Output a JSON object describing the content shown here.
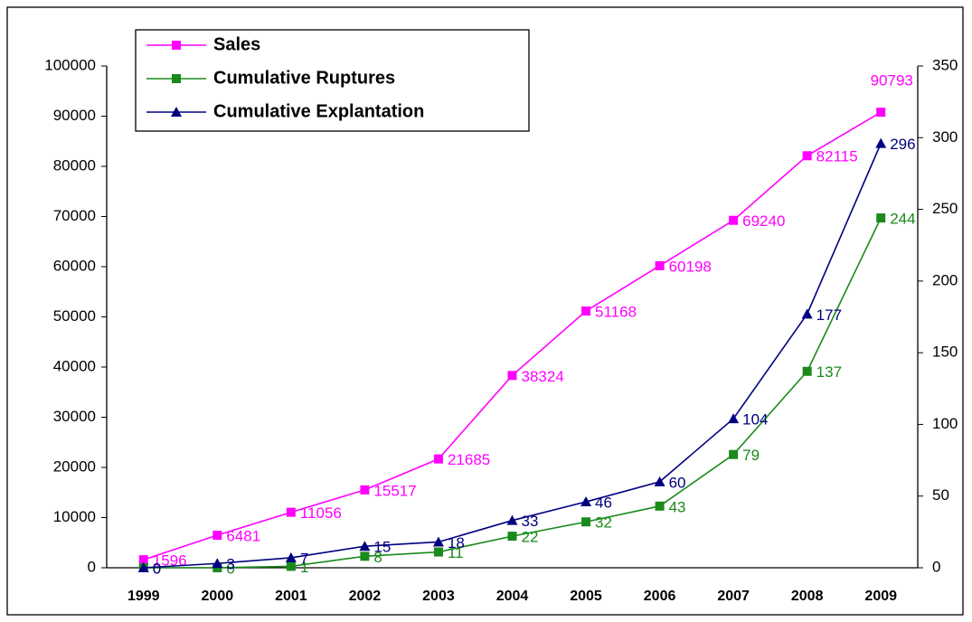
{
  "chart_data": {
    "type": "line",
    "categories": [
      "1999",
      "2000",
      "2001",
      "2002",
      "2003",
      "2004",
      "2005",
      "2006",
      "2007",
      "2008",
      "2009"
    ],
    "series": [
      {
        "name": "Sales",
        "color": "#ff00ff",
        "marker": "square",
        "axis": "y",
        "values": [
          1596,
          6481,
          11056,
          15517,
          21685,
          38324,
          51168,
          60198,
          69240,
          82115,
          90793
        ]
      },
      {
        "name": "Cumulative Ruptures",
        "color": "#1a8a1a",
        "marker": "square",
        "axis": "y2",
        "values": [
          0,
          0,
          1,
          8,
          11,
          22,
          32,
          43,
          79,
          137,
          244
        ]
      },
      {
        "name": "Cumulative Explantation",
        "color": "#000080",
        "marker": "triangle",
        "axis": "y2",
        "values": [
          0,
          3,
          7,
          15,
          18,
          33,
          46,
          60,
          104,
          177,
          296
        ]
      }
    ],
    "ylim": [
      0,
      100000
    ],
    "yticks": [
      0,
      10000,
      20000,
      30000,
      40000,
      50000,
      60000,
      70000,
      80000,
      90000,
      100000
    ],
    "y2lim": [
      0,
      350
    ],
    "y2ticks": [
      0,
      50,
      100,
      150,
      200,
      250,
      300,
      350
    ],
    "legend": "top-left",
    "grid": false
  }
}
